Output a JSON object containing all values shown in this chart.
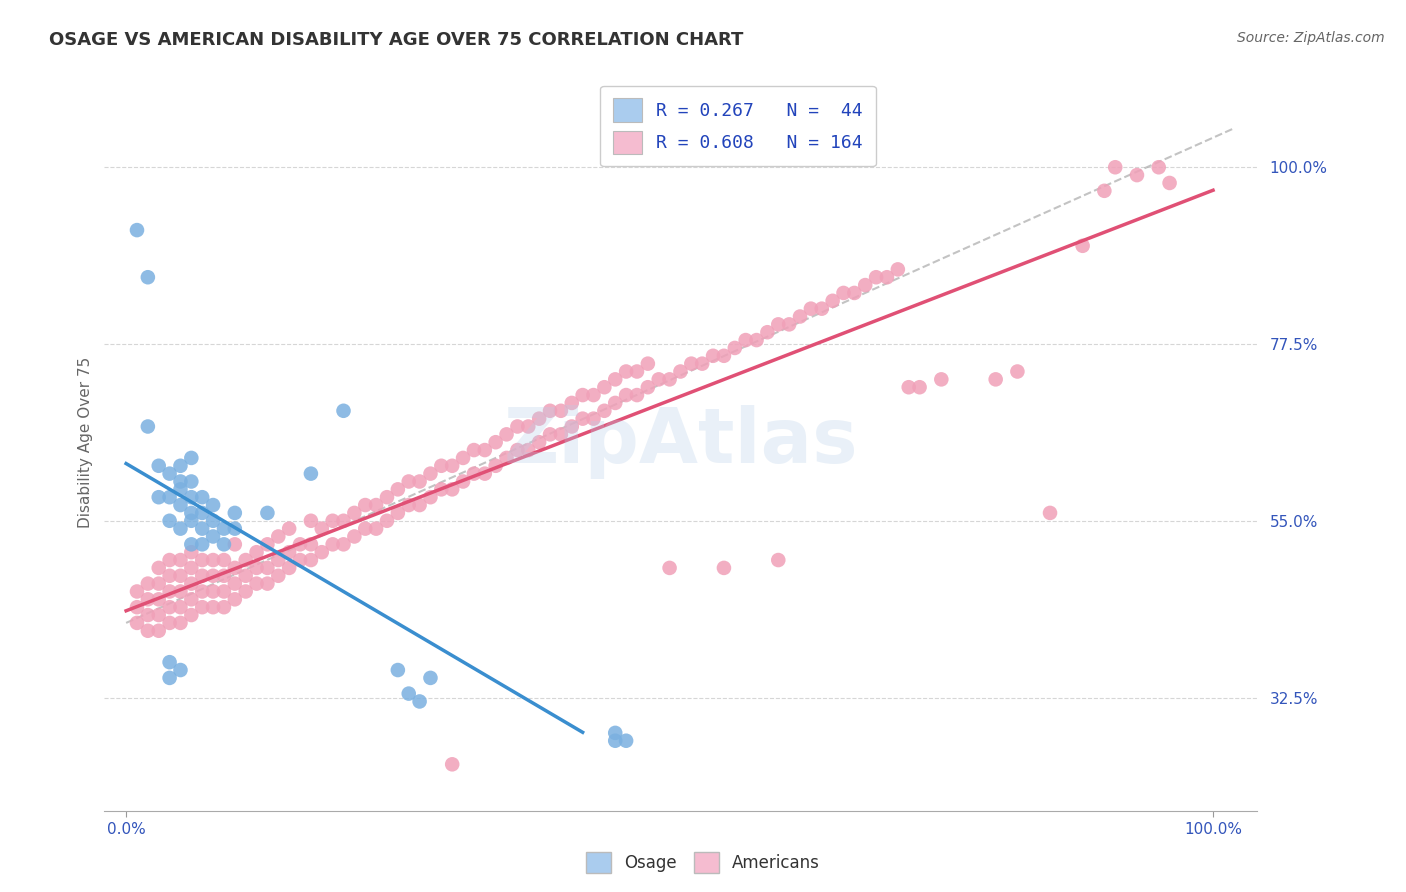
{
  "title": "OSAGE VS AMERICAN DISABILITY AGE OVER 75 CORRELATION CHART",
  "source_text": "Source: ZipAtlas.com",
  "ylabel": "Disability Age Over 75",
  "y_tick_values": [
    0.325,
    0.55,
    0.775,
    1.0
  ],
  "y_tick_labels": [
    "32.5%",
    "55.0%",
    "77.5%",
    "100.0%"
  ],
  "xlim": [
    -0.02,
    1.04
  ],
  "ylim": [
    0.18,
    1.12
  ],
  "background_color": "#ffffff",
  "grid_color": "#cccccc",
  "osage_color": "#7ab0e0",
  "americans_color": "#f0a0b8",
  "legend_box_osage_color": "#aaccee",
  "legend_box_americans_color": "#f5bcd0",
  "osage_scatter": [
    [
      0.01,
      0.92
    ],
    [
      0.02,
      0.86
    ],
    [
      0.02,
      0.67
    ],
    [
      0.03,
      0.58
    ],
    [
      0.03,
      0.62
    ],
    [
      0.04,
      0.55
    ],
    [
      0.04,
      0.58
    ],
    [
      0.04,
      0.61
    ],
    [
      0.05,
      0.54
    ],
    [
      0.05,
      0.57
    ],
    [
      0.05,
      0.59
    ],
    [
      0.05,
      0.6
    ],
    [
      0.05,
      0.62
    ],
    [
      0.06,
      0.52
    ],
    [
      0.06,
      0.55
    ],
    [
      0.06,
      0.56
    ],
    [
      0.06,
      0.58
    ],
    [
      0.06,
      0.6
    ],
    [
      0.06,
      0.63
    ],
    [
      0.07,
      0.52
    ],
    [
      0.07,
      0.54
    ],
    [
      0.07,
      0.56
    ],
    [
      0.07,
      0.58
    ],
    [
      0.08,
      0.53
    ],
    [
      0.08,
      0.55
    ],
    [
      0.08,
      0.57
    ],
    [
      0.09,
      0.52
    ],
    [
      0.09,
      0.54
    ],
    [
      0.1,
      0.54
    ],
    [
      0.1,
      0.56
    ],
    [
      0.13,
      0.56
    ],
    [
      0.17,
      0.61
    ],
    [
      0.2,
      0.69
    ],
    [
      0.25,
      0.36
    ],
    [
      0.26,
      0.33
    ],
    [
      0.27,
      0.32
    ],
    [
      0.28,
      0.35
    ],
    [
      0.04,
      0.37
    ],
    [
      0.04,
      0.35
    ],
    [
      0.05,
      0.36
    ],
    [
      0.45,
      0.28
    ],
    [
      0.45,
      0.27
    ],
    [
      0.46,
      0.27
    ]
  ],
  "americans_scatter": [
    [
      0.01,
      0.42
    ],
    [
      0.01,
      0.44
    ],
    [
      0.01,
      0.46
    ],
    [
      0.02,
      0.41
    ],
    [
      0.02,
      0.43
    ],
    [
      0.02,
      0.45
    ],
    [
      0.02,
      0.47
    ],
    [
      0.03,
      0.41
    ],
    [
      0.03,
      0.43
    ],
    [
      0.03,
      0.45
    ],
    [
      0.03,
      0.47
    ],
    [
      0.03,
      0.49
    ],
    [
      0.04,
      0.42
    ],
    [
      0.04,
      0.44
    ],
    [
      0.04,
      0.46
    ],
    [
      0.04,
      0.48
    ],
    [
      0.04,
      0.5
    ],
    [
      0.05,
      0.42
    ],
    [
      0.05,
      0.44
    ],
    [
      0.05,
      0.46
    ],
    [
      0.05,
      0.48
    ],
    [
      0.05,
      0.5
    ],
    [
      0.06,
      0.43
    ],
    [
      0.06,
      0.45
    ],
    [
      0.06,
      0.47
    ],
    [
      0.06,
      0.49
    ],
    [
      0.06,
      0.51
    ],
    [
      0.07,
      0.44
    ],
    [
      0.07,
      0.46
    ],
    [
      0.07,
      0.48
    ],
    [
      0.07,
      0.5
    ],
    [
      0.08,
      0.44
    ],
    [
      0.08,
      0.46
    ],
    [
      0.08,
      0.48
    ],
    [
      0.08,
      0.5
    ],
    [
      0.09,
      0.44
    ],
    [
      0.09,
      0.46
    ],
    [
      0.09,
      0.48
    ],
    [
      0.09,
      0.5
    ],
    [
      0.1,
      0.45
    ],
    [
      0.1,
      0.47
    ],
    [
      0.1,
      0.49
    ],
    [
      0.1,
      0.52
    ],
    [
      0.11,
      0.46
    ],
    [
      0.11,
      0.48
    ],
    [
      0.11,
      0.5
    ],
    [
      0.12,
      0.47
    ],
    [
      0.12,
      0.49
    ],
    [
      0.12,
      0.51
    ],
    [
      0.13,
      0.47
    ],
    [
      0.13,
      0.49
    ],
    [
      0.13,
      0.52
    ],
    [
      0.14,
      0.48
    ],
    [
      0.14,
      0.5
    ],
    [
      0.14,
      0.53
    ],
    [
      0.15,
      0.49
    ],
    [
      0.15,
      0.51
    ],
    [
      0.15,
      0.54
    ],
    [
      0.16,
      0.5
    ],
    [
      0.16,
      0.52
    ],
    [
      0.17,
      0.5
    ],
    [
      0.17,
      0.52
    ],
    [
      0.17,
      0.55
    ],
    [
      0.18,
      0.51
    ],
    [
      0.18,
      0.54
    ],
    [
      0.19,
      0.52
    ],
    [
      0.19,
      0.55
    ],
    [
      0.2,
      0.52
    ],
    [
      0.2,
      0.55
    ],
    [
      0.21,
      0.53
    ],
    [
      0.21,
      0.56
    ],
    [
      0.22,
      0.54
    ],
    [
      0.22,
      0.57
    ],
    [
      0.23,
      0.54
    ],
    [
      0.23,
      0.57
    ],
    [
      0.24,
      0.55
    ],
    [
      0.24,
      0.58
    ],
    [
      0.25,
      0.56
    ],
    [
      0.25,
      0.59
    ],
    [
      0.26,
      0.57
    ],
    [
      0.26,
      0.6
    ],
    [
      0.27,
      0.57
    ],
    [
      0.27,
      0.6
    ],
    [
      0.28,
      0.58
    ],
    [
      0.28,
      0.61
    ],
    [
      0.29,
      0.59
    ],
    [
      0.29,
      0.62
    ],
    [
      0.3,
      0.59
    ],
    [
      0.3,
      0.62
    ],
    [
      0.31,
      0.6
    ],
    [
      0.31,
      0.63
    ],
    [
      0.32,
      0.61
    ],
    [
      0.32,
      0.64
    ],
    [
      0.33,
      0.61
    ],
    [
      0.33,
      0.64
    ],
    [
      0.34,
      0.62
    ],
    [
      0.34,
      0.65
    ],
    [
      0.35,
      0.63
    ],
    [
      0.35,
      0.66
    ],
    [
      0.36,
      0.64
    ],
    [
      0.36,
      0.67
    ],
    [
      0.37,
      0.64
    ],
    [
      0.37,
      0.67
    ],
    [
      0.38,
      0.65
    ],
    [
      0.38,
      0.68
    ],
    [
      0.39,
      0.66
    ],
    [
      0.39,
      0.69
    ],
    [
      0.4,
      0.66
    ],
    [
      0.4,
      0.69
    ],
    [
      0.41,
      0.67
    ],
    [
      0.41,
      0.7
    ],
    [
      0.42,
      0.68
    ],
    [
      0.42,
      0.71
    ],
    [
      0.43,
      0.68
    ],
    [
      0.43,
      0.71
    ],
    [
      0.44,
      0.69
    ],
    [
      0.44,
      0.72
    ],
    [
      0.45,
      0.7
    ],
    [
      0.45,
      0.73
    ],
    [
      0.46,
      0.71
    ],
    [
      0.46,
      0.74
    ],
    [
      0.47,
      0.71
    ],
    [
      0.47,
      0.74
    ],
    [
      0.48,
      0.72
    ],
    [
      0.48,
      0.75
    ],
    [
      0.49,
      0.73
    ],
    [
      0.5,
      0.73
    ],
    [
      0.5,
      0.49
    ],
    [
      0.51,
      0.74
    ],
    [
      0.52,
      0.75
    ],
    [
      0.53,
      0.75
    ],
    [
      0.54,
      0.76
    ],
    [
      0.55,
      0.76
    ],
    [
      0.55,
      0.49
    ],
    [
      0.56,
      0.77
    ],
    [
      0.57,
      0.78
    ],
    [
      0.58,
      0.78
    ],
    [
      0.59,
      0.79
    ],
    [
      0.6,
      0.8
    ],
    [
      0.6,
      0.5
    ],
    [
      0.61,
      0.8
    ],
    [
      0.62,
      0.81
    ],
    [
      0.63,
      0.82
    ],
    [
      0.64,
      0.82
    ],
    [
      0.65,
      0.83
    ],
    [
      0.66,
      0.84
    ],
    [
      0.67,
      0.84
    ],
    [
      0.68,
      0.85
    ],
    [
      0.69,
      0.86
    ],
    [
      0.7,
      0.86
    ],
    [
      0.71,
      0.87
    ],
    [
      0.72,
      0.72
    ],
    [
      0.73,
      0.72
    ],
    [
      0.75,
      0.73
    ],
    [
      0.8,
      0.73
    ],
    [
      0.82,
      0.74
    ],
    [
      0.85,
      0.56
    ],
    [
      0.88,
      0.9
    ],
    [
      0.9,
      0.97
    ],
    [
      0.91,
      1.0
    ],
    [
      0.93,
      0.99
    ],
    [
      0.95,
      1.0
    ],
    [
      0.96,
      0.98
    ],
    [
      0.3,
      0.24
    ]
  ],
  "watermark_text": "ZipAtlas",
  "title_color": "#333333",
  "axis_label_color": "#666666",
  "tick_color": "#3355bb",
  "tick_fontsize": 11,
  "title_fontsize": 13,
  "ylabel_fontsize": 11,
  "source_fontsize": 10,
  "source_color": "#666666"
}
